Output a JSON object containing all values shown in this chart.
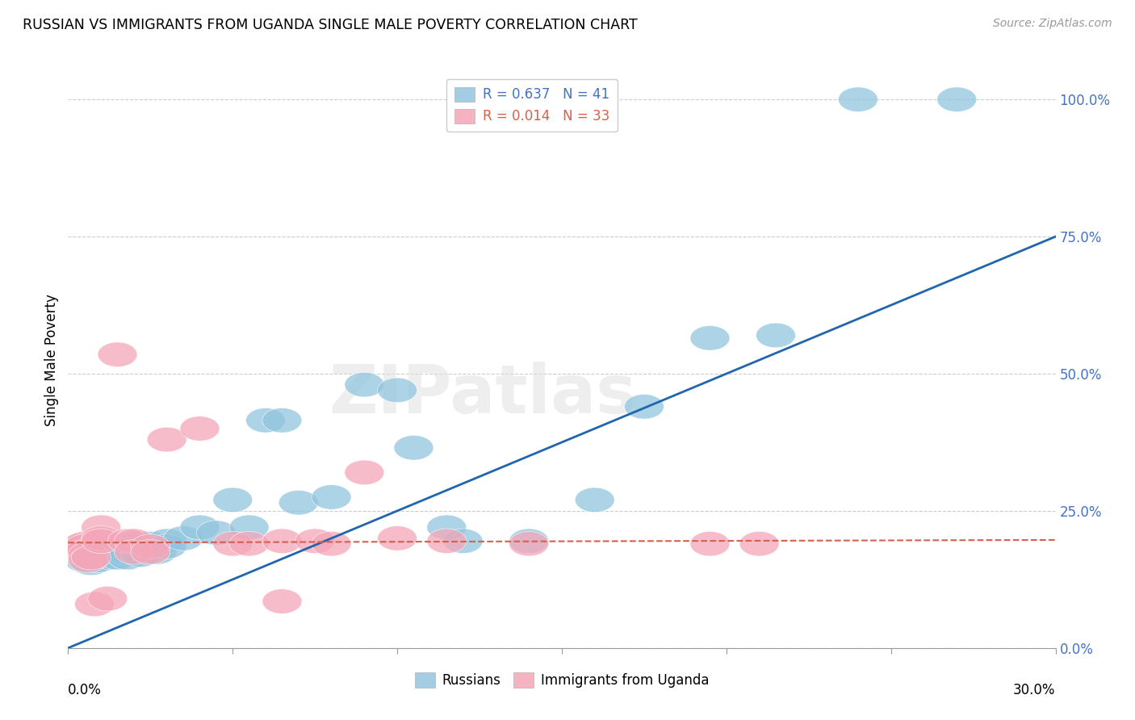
{
  "title": "RUSSIAN VS IMMIGRANTS FROM UGANDA SINGLE MALE POVERTY CORRELATION CHART",
  "source": "Source: ZipAtlas.com",
  "ylabel": "Single Male Poverty",
  "ytick_values": [
    0.0,
    0.25,
    0.5,
    0.75,
    1.0
  ],
  "xmin": 0.0,
  "xmax": 0.3,
  "ymin": 0.0,
  "ymax": 1.05,
  "color_russian": "#92c5de",
  "color_uganda": "#f4a6b8",
  "color_line_russian": "#2166ac",
  "color_line_uganda": "#d6604d",
  "background": "#ffffff",
  "watermark": "ZIPatlas",
  "russian_x": [
    0.005,
    0.007,
    0.008,
    0.009,
    0.01,
    0.01,
    0.012,
    0.013,
    0.015,
    0.015,
    0.017,
    0.018,
    0.02,
    0.02,
    0.022,
    0.025,
    0.025,
    0.027,
    0.03,
    0.03,
    0.035,
    0.04,
    0.045,
    0.05,
    0.055,
    0.06,
    0.065,
    0.07,
    0.08,
    0.09,
    0.1,
    0.105,
    0.115,
    0.12,
    0.14,
    0.16,
    0.175,
    0.195,
    0.215,
    0.24,
    0.27
  ],
  "russian_y": [
    0.16,
    0.155,
    0.17,
    0.16,
    0.18,
    0.175,
    0.17,
    0.165,
    0.175,
    0.165,
    0.175,
    0.165,
    0.19,
    0.18,
    0.17,
    0.19,
    0.18,
    0.175,
    0.195,
    0.185,
    0.2,
    0.22,
    0.21,
    0.27,
    0.22,
    0.415,
    0.415,
    0.265,
    0.275,
    0.48,
    0.47,
    0.365,
    0.22,
    0.195,
    0.195,
    0.27,
    0.44,
    0.565,
    0.57,
    1.0,
    1.0
  ],
  "uganda_x": [
    0.003,
    0.004,
    0.005,
    0.005,
    0.005,
    0.006,
    0.006,
    0.007,
    0.008,
    0.01,
    0.01,
    0.01,
    0.012,
    0.015,
    0.018,
    0.02,
    0.02,
    0.025,
    0.025,
    0.03,
    0.04,
    0.05,
    0.055,
    0.065,
    0.065,
    0.075,
    0.08,
    0.09,
    0.1,
    0.115,
    0.14,
    0.195,
    0.21
  ],
  "uganda_y": [
    0.185,
    0.175,
    0.19,
    0.185,
    0.175,
    0.17,
    0.16,
    0.165,
    0.08,
    0.22,
    0.2,
    0.195,
    0.09,
    0.535,
    0.195,
    0.195,
    0.175,
    0.185,
    0.175,
    0.38,
    0.4,
    0.19,
    0.19,
    0.195,
    0.085,
    0.195,
    0.19,
    0.32,
    0.2,
    0.195,
    0.19,
    0.19,
    0.19
  ],
  "russian_line_x0": 0.0,
  "russian_line_y0": 0.0,
  "russian_line_x1": 0.3,
  "russian_line_y1": 0.75,
  "uganda_line_x0": 0.0,
  "uganda_line_y0": 0.192,
  "uganda_line_x1": 0.3,
  "uganda_line_y1": 0.197
}
